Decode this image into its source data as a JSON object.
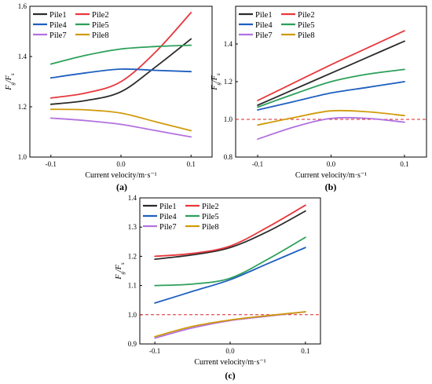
{
  "series_names": [
    "Pile1",
    "Pile2",
    "Pile4",
    "Pile5",
    "Pile7",
    "Pile8"
  ],
  "colors": {
    "Pile1": "#2b2b2b",
    "Pile2": "#e8383d",
    "Pile4": "#1f5fbf",
    "Pile5": "#2ca05a",
    "Pile7": "#b272e0",
    "Pile8": "#d19a0a",
    "ref_line": "#d62728"
  },
  "chart_data": [
    {
      "type": "line",
      "panel_label": "(a)",
      "xlabel": "Current velocity/m·s⁻¹",
      "ylabel_main": "F",
      "ylabel_sub1": "g",
      "ylabel_sep": "/F",
      "ylabel_sub2": "s",
      "xlim": [
        -0.13,
        0.13
      ],
      "ylim": [
        1.0,
        1.6
      ],
      "xticks": [
        -0.1,
        0.0,
        0.1
      ],
      "xtick_labels": [
        "-0.1",
        "0.0",
        "0.1"
      ],
      "yticks": [
        1.0,
        1.2,
        1.4,
        1.6
      ],
      "ytick_labels": [
        "1.0",
        "1.2",
        "1.4",
        "1.6"
      ],
      "legend": "top-left",
      "x": [
        -0.1,
        -0.05,
        0.0,
        0.05,
        0.1
      ],
      "series": [
        {
          "name": "Pile1",
          "values": [
            1.21,
            1.225,
            1.26,
            1.36,
            1.47
          ]
        },
        {
          "name": "Pile2",
          "values": [
            1.235,
            1.255,
            1.3,
            1.42,
            1.575
          ]
        },
        {
          "name": "Pile4",
          "values": [
            1.315,
            1.335,
            1.35,
            1.345,
            1.34
          ]
        },
        {
          "name": "Pile5",
          "values": [
            1.37,
            1.405,
            1.43,
            1.44,
            1.445
          ]
        },
        {
          "name": "Pile7",
          "values": [
            1.155,
            1.145,
            1.13,
            1.105,
            1.08
          ]
        },
        {
          "name": "Pile8",
          "values": [
            1.19,
            1.188,
            1.175,
            1.14,
            1.105
          ]
        }
      ]
    },
    {
      "type": "line",
      "panel_label": "(b)",
      "xlabel": "Current velocity/m·s⁻¹",
      "ylabel_main": "F",
      "ylabel_sub1": "g",
      "ylabel_sep": "/F",
      "ylabel_sub2": "s",
      "xlim": [
        -0.13,
        0.13
      ],
      "ylim": [
        0.8,
        1.6
      ],
      "xticks": [
        -0.1,
        0.0,
        0.1
      ],
      "xtick_labels": [
        "-0.1",
        "0.0",
        "0.1"
      ],
      "yticks": [
        0.8,
        1.0,
        1.2,
        1.4
      ],
      "ytick_labels": [
        "0.8",
        "1.0",
        "1.2",
        "1.4"
      ],
      "reference_y": 1.0,
      "legend": "top-left",
      "x": [
        -0.1,
        -0.05,
        0.0,
        0.05,
        0.1
      ],
      "series": [
        {
          "name": "Pile1",
          "values": [
            1.075,
            1.16,
            1.245,
            1.33,
            1.415
          ]
        },
        {
          "name": "Pile2",
          "values": [
            1.1,
            1.195,
            1.29,
            1.38,
            1.47
          ]
        },
        {
          "name": "Pile4",
          "values": [
            1.05,
            1.095,
            1.14,
            1.17,
            1.2
          ]
        },
        {
          "name": "Pile5",
          "values": [
            1.065,
            1.135,
            1.2,
            1.24,
            1.265
          ]
        },
        {
          "name": "Pile7",
          "values": [
            0.895,
            0.96,
            1.005,
            1.005,
            0.985
          ]
        },
        {
          "name": "Pile8",
          "values": [
            0.97,
            1.01,
            1.045,
            1.04,
            1.02
          ]
        }
      ]
    },
    {
      "type": "line",
      "panel_label": "(c)",
      "xlabel": "Current velocity/m·s⁻¹",
      "ylabel_main": "F",
      "ylabel_sub1": "g",
      "ylabel_sep": "/F",
      "ylabel_sub2": "s",
      "xlim": [
        -0.12,
        0.12
      ],
      "ylim": [
        0.9,
        1.4
      ],
      "xticks": [
        -0.1,
        0.0,
        0.1
      ],
      "xtick_labels": [
        "-0.1",
        "0.0",
        "0.1"
      ],
      "yticks": [
        0.9,
        1.0,
        1.1,
        1.2,
        1.3,
        1.4
      ],
      "ytick_labels": [
        "0.9",
        "1.0",
        "1.1",
        "1.2",
        "1.3",
        "1.4"
      ],
      "reference_y": 1.0,
      "legend": "top-left",
      "x": [
        -0.1,
        -0.05,
        0.0,
        0.05,
        0.1
      ],
      "series": [
        {
          "name": "Pile1",
          "values": [
            1.19,
            1.205,
            1.23,
            1.285,
            1.355
          ]
        },
        {
          "name": "Pile2",
          "values": [
            1.2,
            1.21,
            1.235,
            1.3,
            1.375
          ]
        },
        {
          "name": "Pile4",
          "values": [
            1.04,
            1.08,
            1.12,
            1.175,
            1.23
          ]
        },
        {
          "name": "Pile5",
          "values": [
            1.1,
            1.105,
            1.125,
            1.19,
            1.265
          ]
        },
        {
          "name": "Pile7",
          "values": [
            0.92,
            0.955,
            0.98,
            0.995,
            1.01
          ]
        },
        {
          "name": "Pile8",
          "values": [
            0.925,
            0.96,
            0.982,
            0.997,
            1.01
          ]
        }
      ]
    }
  ]
}
